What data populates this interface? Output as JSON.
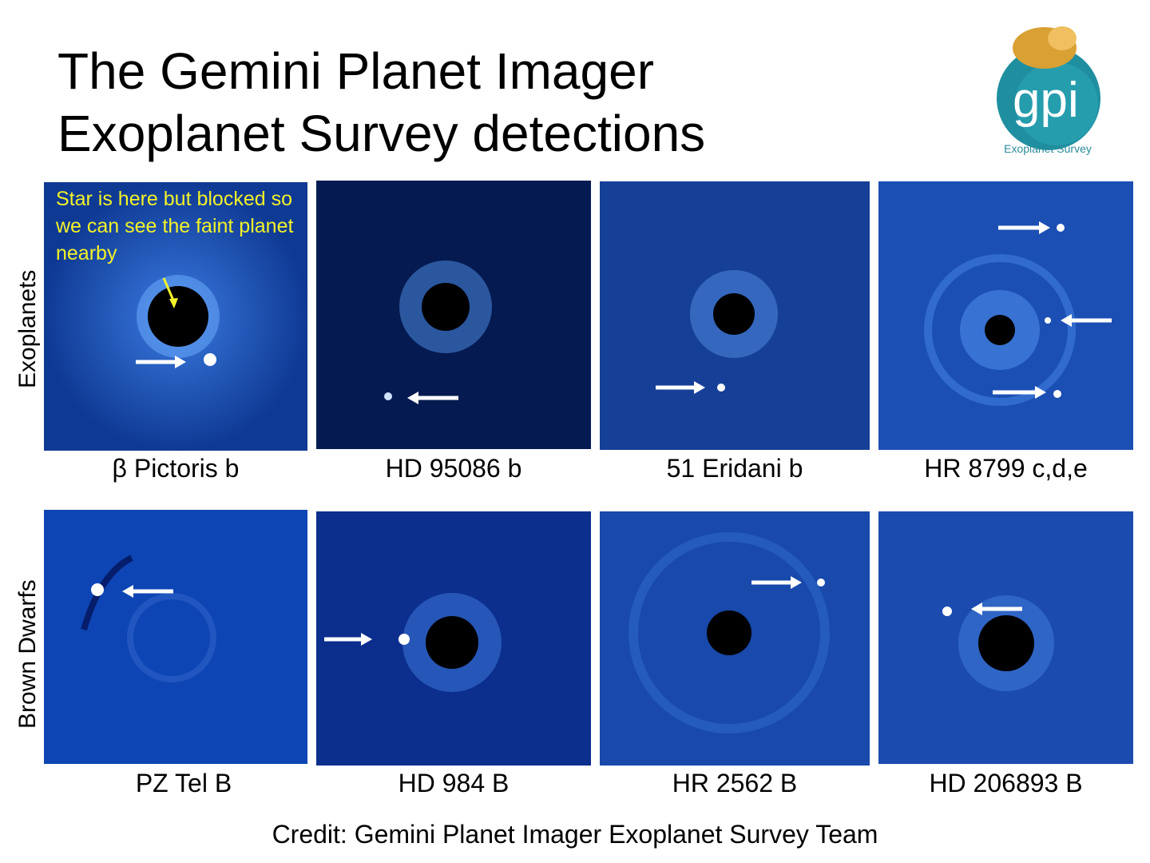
{
  "title": {
    "line1": "The Gemini Planet Imager",
    "line2": "Exoplanet Survey detections"
  },
  "logo": {
    "mark_text": "gpi",
    "caption": "Exoplanet Survey"
  },
  "rows": [
    {
      "label": "Exoplanets",
      "panels": [
        {
          "caption": "β Pictoris b",
          "annotation": "Star is here but blocked so we can see the faint planet nearby"
        },
        {
          "caption": "HD 95086 b"
        },
        {
          "caption": "51 Eridani b"
        },
        {
          "caption": "HR 8799 c,d,e"
        }
      ]
    },
    {
      "label": "Brown Dwarfs",
      "panels": [
        {
          "caption": "PZ Tel B"
        },
        {
          "caption": "HD 984 B"
        },
        {
          "caption": "HR 2562 B"
        },
        {
          "caption": "HD 206893 B"
        }
      ]
    }
  ],
  "credit": "Credit: Gemini Planet Imager Exoplanet Survey Team",
  "colors": {
    "panel_background": "#1a4fb0",
    "annotation_text": "#f2f22a",
    "logo_teal": "#1f8fa0"
  }
}
